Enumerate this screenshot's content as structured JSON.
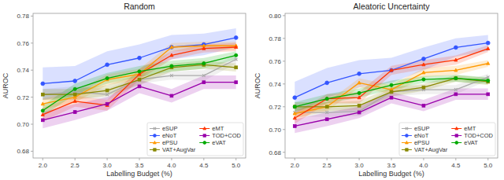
{
  "chart_data": [
    {
      "type": "line",
      "title": "Random",
      "x_label": "Labelling Budget (%)",
      "y_label": "AUROC",
      "x": [
        2.0,
        2.5,
        3.0,
        3.5,
        4.0,
        4.5,
        5.0
      ],
      "xlim": [
        1.85,
        5.15
      ],
      "xticks": [
        {
          "value": 2.0,
          "label": "2.0"
        },
        2.5,
        {
          "value": 3.0,
          "label": "3.0"
        },
        3.5,
        {
          "value": 4.0,
          "label": "4.0"
        },
        4.5,
        {
          "value": 5.0,
          "label": "5.0"
        }
      ],
      "ylim": [
        0.675,
        0.782
      ],
      "yticks": [
        0.68,
        {
          "value": 0.7,
          "label": "0.70"
        },
        0.72,
        0.74,
        0.76,
        0.78
      ],
      "grid": false,
      "legend": "lower right",
      "series": [
        {
          "name": "eSUP",
          "color": "#aaaaaa",
          "marker": "x",
          "values": [
            0.722,
            0.724,
            0.722,
            0.733,
            0.736,
            0.736,
            0.748
          ],
          "std": [
            0.004,
            0.004,
            0.004,
            0.003,
            0.003,
            0.004,
            0.003
          ]
        },
        {
          "name": "eNoT",
          "color": "#3355ff",
          "marker": "circle",
          "values": [
            0.73,
            0.732,
            0.744,
            0.749,
            0.757,
            0.759,
            0.764
          ],
          "std": [
            0.012,
            0.011,
            0.01,
            0.01,
            0.009,
            0.008,
            0.007
          ]
        },
        {
          "name": "ePSU",
          "color": "#ff9900",
          "marker": "triangle",
          "values": [
            0.715,
            0.72,
            0.733,
            0.737,
            0.757,
            0.758,
            0.758
          ],
          "std": [
            0.004,
            0.004,
            0.004,
            0.004,
            0.003,
            0.003,
            0.003
          ]
        },
        {
          "name": "VAT+AugVar",
          "color": "#888800",
          "marker": "square",
          "values": [
            0.722,
            0.722,
            0.725,
            0.733,
            0.742,
            0.744,
            0.742
          ],
          "std": [
            0.004,
            0.004,
            0.004,
            0.004,
            0.003,
            0.003,
            0.003
          ]
        },
        {
          "name": "eMT",
          "color": "#ff3300",
          "marker": "triangle",
          "values": [
            0.707,
            0.717,
            0.714,
            0.737,
            0.751,
            0.756,
            0.757
          ],
          "std": [
            0.005,
            0.004,
            0.004,
            0.004,
            0.003,
            0.003,
            0.003
          ]
        },
        {
          "name": "TOD+COD",
          "color": "#9900aa",
          "marker": "square",
          "values": [
            0.703,
            0.709,
            0.715,
            0.728,
            0.721,
            0.731,
            0.731
          ],
          "std": [
            0.006,
            0.006,
            0.005,
            0.005,
            0.005,
            0.005,
            0.005
          ]
        },
        {
          "name": "eVAT",
          "color": "#00aa00",
          "marker": "circle",
          "values": [
            0.71,
            0.726,
            0.734,
            0.739,
            0.743,
            0.745,
            0.751
          ],
          "std": [
            0.004,
            0.004,
            0.004,
            0.004,
            0.004,
            0.004,
            0.003
          ]
        }
      ]
    },
    {
      "type": "line",
      "title": "Aleatoric Uncertainty",
      "x_label": "Labelling Budget (%)",
      "y_label": "AUROC",
      "x": [
        2.0,
        2.5,
        3.0,
        3.5,
        4.0,
        4.5,
        5.0
      ],
      "xlim": [
        1.85,
        5.15
      ],
      "xticks": [
        {
          "value": 2.0,
          "label": "2.0"
        },
        2.5,
        {
          "value": 3.0,
          "label": "3.0"
        },
        3.5,
        {
          "value": 4.0,
          "label": "4.0"
        },
        4.5,
        {
          "value": 5.0,
          "label": "5.0"
        }
      ],
      "ylim": [
        0.675,
        0.802
      ],
      "yticks": [
        0.68,
        {
          "value": 0.7,
          "label": "0.70"
        },
        0.72,
        0.74,
        0.76,
        0.78,
        {
          "value": 0.8,
          "label": "0.80"
        }
      ],
      "grid": false,
      "legend": "lower right",
      "series": [
        {
          "name": "eSUP",
          "color": "#aaaaaa",
          "marker": "x",
          "values": [
            0.715,
            0.715,
            0.716,
            0.733,
            0.735,
            0.735,
            0.746
          ],
          "std": [
            0.004,
            0.004,
            0.004,
            0.004,
            0.004,
            0.004,
            0.003
          ]
        },
        {
          "name": "eNoT",
          "color": "#3355ff",
          "marker": "circle",
          "values": [
            0.728,
            0.741,
            0.749,
            0.752,
            0.762,
            0.772,
            0.776
          ],
          "std": [
            0.014,
            0.013,
            0.012,
            0.011,
            0.01,
            0.008,
            0.007
          ]
        },
        {
          "name": "ePSU",
          "color": "#ff9900",
          "marker": "triangle",
          "values": [
            0.714,
            0.72,
            0.741,
            0.735,
            0.75,
            0.752,
            0.758
          ],
          "std": [
            0.004,
            0.004,
            0.004,
            0.004,
            0.004,
            0.004,
            0.003
          ]
        },
        {
          "name": "VAT+AugVar",
          "color": "#888800",
          "marker": "square",
          "values": [
            0.72,
            0.72,
            0.721,
            0.733,
            0.737,
            0.745,
            0.742
          ],
          "std": [
            0.004,
            0.004,
            0.004,
            0.004,
            0.003,
            0.003,
            0.003
          ]
        },
        {
          "name": "eMT",
          "color": "#ff3300",
          "marker": "triangle",
          "values": [
            0.71,
            0.727,
            0.728,
            0.752,
            0.757,
            0.761,
            0.771
          ],
          "std": [
            0.005,
            0.004,
            0.005,
            0.004,
            0.004,
            0.004,
            0.003
          ]
        },
        {
          "name": "TOD+COD",
          "color": "#9900aa",
          "marker": "square",
          "values": [
            0.703,
            0.709,
            0.715,
            0.728,
            0.721,
            0.731,
            0.731
          ],
          "std": [
            0.006,
            0.006,
            0.005,
            0.005,
            0.005,
            0.005,
            0.005
          ]
        },
        {
          "name": "eVAT",
          "color": "#00aa00",
          "marker": "circle",
          "values": [
            0.72,
            0.727,
            0.732,
            0.739,
            0.744,
            0.745,
            0.743
          ],
          "std": [
            0.004,
            0.004,
            0.004,
            0.004,
            0.003,
            0.003,
            0.003
          ]
        }
      ]
    }
  ]
}
